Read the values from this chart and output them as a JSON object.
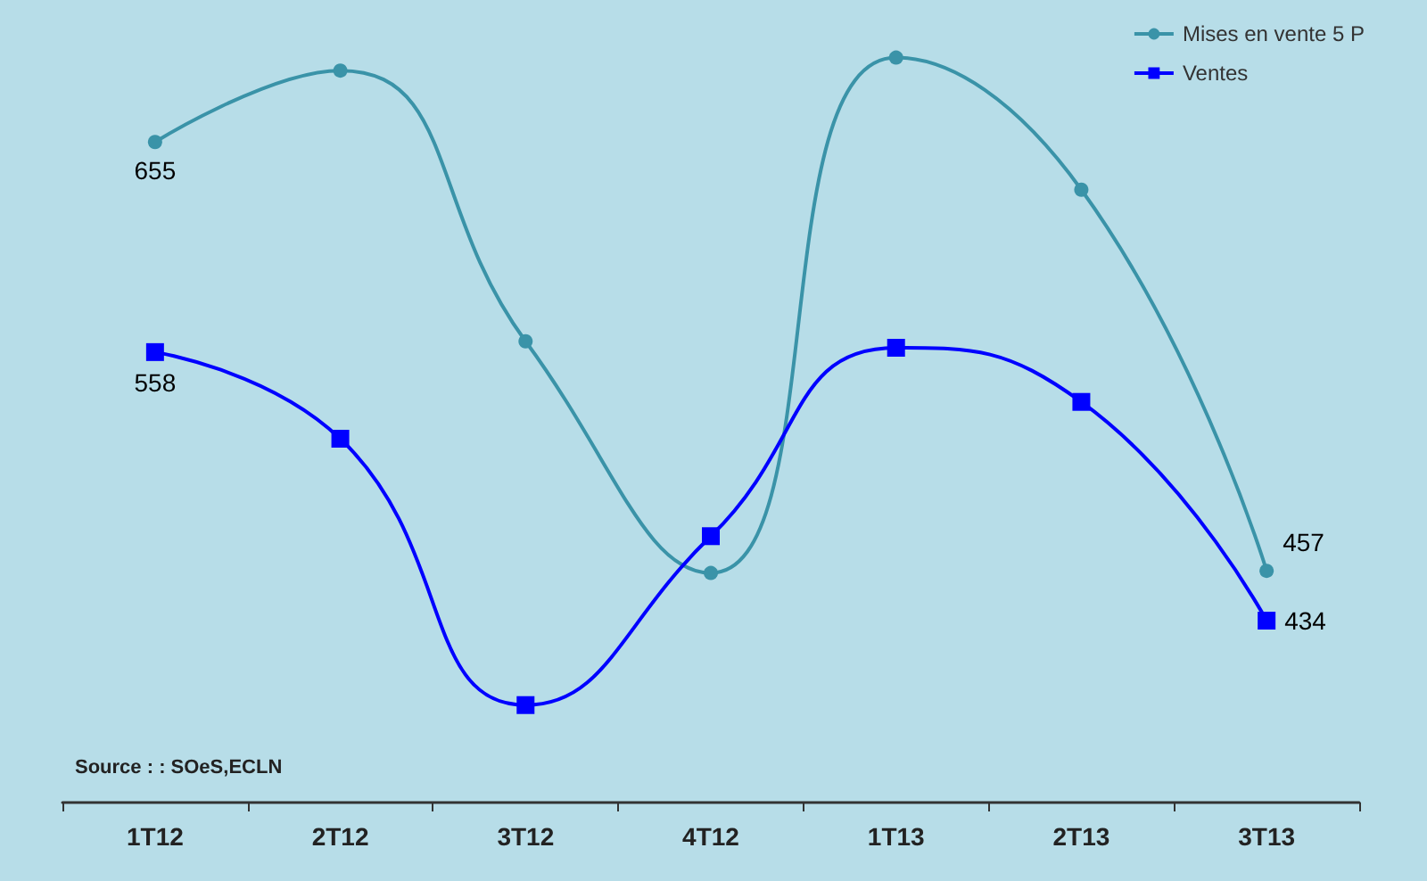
{
  "chart_data": {
    "type": "line",
    "categories": [
      "1T12",
      "2T12",
      "3T12",
      "4T12",
      "1T13",
      "2T13",
      "3T13"
    ],
    "series": [
      {
        "name": "Mises en vente 5 P",
        "color": "#3a93a8",
        "marker": "circle",
        "values": [
          655,
          688,
          563,
          456,
          694,
          633,
          457
        ],
        "value_labels": [
          "655",
          null,
          null,
          null,
          null,
          null,
          "457"
        ]
      },
      {
        "name": "Ventes",
        "color": "#0000ff",
        "marker": "square",
        "values": [
          558,
          518,
          395,
          473,
          560,
          535,
          434
        ],
        "value_labels": [
          "558",
          null,
          null,
          null,
          null,
          null,
          "434"
        ]
      }
    ],
    "annotations": [
      "Source : : SOeS,ECLN"
    ],
    "legend": "top right",
    "grid": false,
    "line_style": "solid"
  }
}
